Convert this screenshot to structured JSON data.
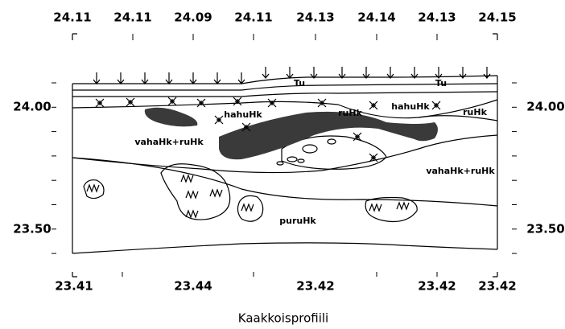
{
  "top_labels": [
    "24.11",
    "24.11",
    "24.09",
    "24.11",
    "24.13",
    "24.14",
    "24.13",
    "24.15"
  ],
  "bottom_labels": [
    "23.41",
    "23.44",
    "23.42",
    "23.42",
    "23.42"
  ],
  "left_labels": [
    "24.00",
    "23.50"
  ],
  "right_labels": [
    "24.00",
    "23.50"
  ],
  "region_labels": [
    "Tu",
    "Tu",
    "hahuHk",
    "hahuHk",
    "ruHk",
    "ruHk",
    "vahaHk+ruHk",
    "vahaHk+ruHk",
    "puruHk"
  ],
  "caption": "Kaakkoisprofiili"
}
